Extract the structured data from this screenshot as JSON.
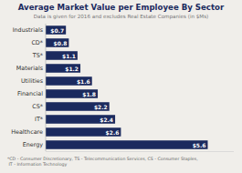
{
  "chart_data": {
    "type": "bar",
    "orientation": "horizontal",
    "title": "Average Market Value per Employee By Sector",
    "subtitle": "Data is given for 2016 and excludes Real Estate Companies (in $Ms)",
    "footnote": "*CD - Consumer Discretionary, TS - Telecommunication Services, CS - Consumer Staples,\n IT - Information Technology",
    "categories": [
      "Industrials",
      "CD*",
      "TS*",
      "Materials",
      "Utilities",
      "Financial",
      "CS*",
      "IT*",
      "Healthcare",
      "Energy"
    ],
    "values": [
      0.7,
      0.8,
      1.1,
      1.2,
      1.6,
      1.8,
      2.2,
      2.4,
      2.6,
      5.6
    ],
    "value_labels": [
      "$0.7",
      "$0.8",
      "$1.1",
      "$1.2",
      "$1.6",
      "$1.8",
      "$2.2",
      "$2.4",
      "$2.6",
      "$5.6"
    ],
    "data_labels": true,
    "color": "#1b2a5e",
    "xlim": [
      0,
      6.5
    ],
    "tick_labels": "y",
    "grid": false
  }
}
